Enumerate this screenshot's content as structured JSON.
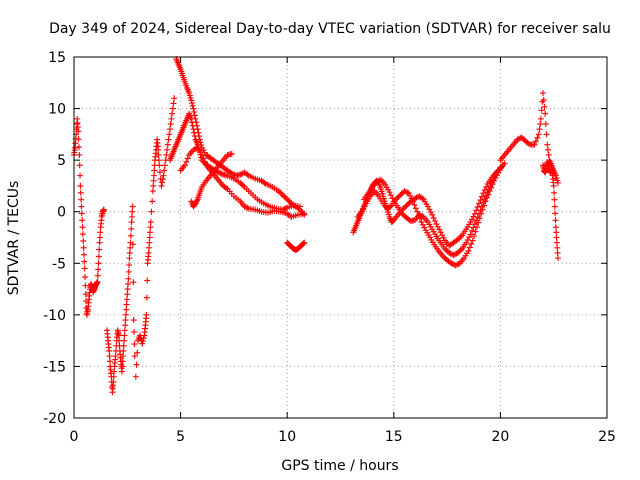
{
  "chart_data": {
    "type": "scatter",
    "title": "Day 349 of 2024, Sidereal Day-to-day VTEC variation (SDTVAR) for receiver salu",
    "xlabel": "GPS time / hours",
    "ylabel": "SDTVAR / TECUs",
    "xlim": [
      0,
      25
    ],
    "ylim": [
      -20,
      15
    ],
    "xticks": [
      0,
      5,
      10,
      15,
      20,
      25
    ],
    "yticks": [
      -20,
      -15,
      -10,
      -5,
      0,
      5,
      10,
      15
    ],
    "grid": true,
    "marker": "plus",
    "color": "#ff0000",
    "series": [
      {
        "name": "seg-1",
        "x": [
          0.0,
          0.05,
          0.1,
          0.15,
          0.2,
          0.25,
          0.3,
          0.35,
          0.4,
          0.45,
          0.5,
          0.55,
          0.6,
          0.65,
          0.7,
          0.75,
          0.8,
          0.85,
          0.9,
          0.95,
          1.0,
          1.05,
          1.1,
          1.15,
          1.2,
          1.25,
          1.3,
          1.35,
          1.4
        ],
        "y": [
          5.5,
          6.2,
          7.5,
          9.0,
          7.8,
          5.5,
          2.5,
          0.5,
          -1.5,
          -3.5,
          -5.5,
          -8.0,
          -10.0,
          -9.5,
          -8.5,
          -7.5,
          -7.0,
          -7.3,
          -7.8,
          -7.5,
          -7.2,
          -7.0,
          -6.8,
          -5.0,
          -3.0,
          -1.5,
          -0.5,
          0.0,
          0.2
        ]
      },
      {
        "name": "seg-2",
        "x": [
          1.55,
          1.6,
          1.65,
          1.7,
          1.75,
          1.8,
          1.85,
          1.9,
          1.95,
          2.0,
          2.05,
          2.1,
          2.15,
          2.2,
          2.25,
          2.3,
          2.35,
          2.4,
          2.45,
          2.5,
          2.55,
          2.6,
          2.65,
          2.7,
          2.75,
          2.8,
          2.85
        ],
        "y": [
          -11.5,
          -12.5,
          -13.5,
          -15.0,
          -16.0,
          -17.5,
          -16.5,
          -15.0,
          -14.0,
          -12.5,
          -11.5,
          -12.0,
          -13.5,
          -14.5,
          -15.5,
          -14.0,
          -12.5,
          -11.0,
          -9.5,
          -8.0,
          -6.5,
          -4.5,
          -3.0,
          -1.0,
          0.5,
          -10.5,
          -14.0
        ]
      },
      {
        "name": "seg-3",
        "x": [
          2.9,
          3.0,
          3.1,
          3.2,
          3.3,
          3.35,
          3.4,
          3.45,
          3.5,
          3.55,
          3.6,
          3.7,
          3.75,
          3.8,
          3.85,
          3.9,
          3.95,
          4.0,
          4.1,
          4.2,
          4.3,
          4.4,
          4.5,
          4.6,
          4.7
        ],
        "y": [
          -16.0,
          -12.5,
          -12.0,
          -12.8,
          -12.0,
          -11.0,
          -10.0,
          -5.0,
          -4.0,
          -2.5,
          -1.0,
          2.0,
          3.5,
          5.0,
          6.0,
          7.0,
          6.0,
          4.5,
          2.5,
          3.5,
          5.0,
          6.5,
          8.0,
          9.5,
          11.0
        ]
      },
      {
        "name": "seg-4",
        "x": [
          4.8,
          4.9,
          5.0,
          5.1,
          5.2,
          5.3,
          5.4,
          5.5,
          5.6,
          5.7,
          5.8,
          5.9,
          6.0,
          6.2,
          6.4,
          6.6,
          6.8,
          7.0,
          7.2,
          7.4,
          7.6,
          7.8,
          8.0,
          8.2,
          8.5,
          8.8,
          9.0,
          9.3,
          9.6,
          9.8,
          10.0,
          10.2,
          10.4,
          10.6,
          10.8
        ],
        "y": [
          14.8,
          14.3,
          13.8,
          13.2,
          12.6,
          12.0,
          11.5,
          10.8,
          10.0,
          9.0,
          8.0,
          7.0,
          6.2,
          5.5,
          5.2,
          4.9,
          4.6,
          4.3,
          4.0,
          3.7,
          3.5,
          3.6,
          3.8,
          3.5,
          3.2,
          3.0,
          2.7,
          2.4,
          2.0,
          1.6,
          1.2,
          0.8,
          0.5,
          0.2,
          -0.3
        ]
      },
      {
        "name": "seg-5",
        "x": [
          4.5,
          4.6,
          4.7,
          4.8,
          4.9,
          5.0,
          5.1,
          5.2,
          5.3,
          5.4,
          5.5,
          5.6,
          5.7,
          5.8,
          5.9,
          6.0,
          6.2,
          6.4,
          6.6,
          6.8,
          7.0,
          7.2,
          7.5,
          7.8,
          8.0,
          8.3,
          8.6,
          8.9,
          9.2,
          9.5,
          9.8,
          10.0,
          10.3,
          10.6
        ],
        "y": [
          5.0,
          5.5,
          6.0,
          6.5,
          7.0,
          7.5,
          8.0,
          8.5,
          9.0,
          9.5,
          9.0,
          8.0,
          7.0,
          6.5,
          5.8,
          5.0,
          4.6,
          4.3,
          4.0,
          3.8,
          3.6,
          3.5,
          3.2,
          2.8,
          2.4,
          1.8,
          1.2,
          0.8,
          0.5,
          0.3,
          0.2,
          0.4,
          0.6,
          0.5
        ]
      },
      {
        "name": "seg-6",
        "x": [
          5.0,
          5.2,
          5.4,
          5.6,
          5.8,
          6.0,
          6.2,
          6.4,
          6.6,
          6.8,
          7.0,
          7.2,
          7.5,
          7.8,
          8.0,
          8.2,
          8.5,
          8.8,
          9.1,
          9.4,
          9.7,
          10.0,
          10.2,
          10.5,
          10.8
        ],
        "y": [
          4.0,
          4.5,
          5.5,
          6.0,
          6.2,
          5.5,
          4.5,
          4.0,
          3.5,
          3.0,
          2.5,
          2.2,
          1.5,
          1.0,
          0.5,
          0.3,
          0.2,
          0.0,
          -0.1,
          0.1,
          0.0,
          -0.2,
          -0.5,
          -0.3,
          -0.2
        ]
      },
      {
        "name": "seg-7",
        "x": [
          5.5,
          5.6,
          5.7,
          5.8,
          5.9,
          6.0,
          6.2,
          6.4,
          6.6,
          6.8,
          7.0,
          7.2,
          7.4
        ],
        "y": [
          1.0,
          0.5,
          0.8,
          1.2,
          1.8,
          2.4,
          3.0,
          3.5,
          4.0,
          4.5,
          5.0,
          5.5,
          5.6
        ]
      },
      {
        "name": "seg-8",
        "x": [
          10.0,
          10.1,
          10.2,
          10.3,
          10.4,
          10.5,
          10.6,
          10.7,
          10.8
        ],
        "y": [
          -3.0,
          -3.2,
          -3.4,
          -3.6,
          -3.7,
          -3.6,
          -3.4,
          -3.2,
          -3.0
        ]
      },
      {
        "name": "seg-9",
        "x": [
          13.1,
          13.2,
          13.3,
          13.4,
          13.5,
          13.6,
          13.7,
          13.8,
          13.9,
          14.0,
          14.1,
          14.2,
          14.3,
          14.4,
          14.5,
          14.6,
          14.7,
          14.8,
          14.9,
          15.0,
          15.2,
          15.4,
          15.6,
          15.8,
          16.0,
          16.2,
          16.4,
          16.6,
          16.8,
          17.0,
          17.2,
          17.4,
          17.6,
          17.8,
          18.0,
          18.2,
          18.4,
          18.6,
          18.8,
          19.0,
          19.2,
          19.4,
          19.6,
          19.8,
          20.0,
          20.2
        ],
        "y": [
          -2.0,
          -1.5,
          -1.0,
          -0.5,
          0.0,
          0.5,
          1.0,
          1.5,
          2.0,
          2.5,
          2.8,
          3.0,
          2.8,
          2.2,
          1.5,
          0.8,
          0.2,
          -0.5,
          -1.0,
          -0.8,
          -0.3,
          0.2,
          0.6,
          1.0,
          1.3,
          1.5,
          1.2,
          0.5,
          -0.3,
          -1.2,
          -2.0,
          -2.8,
          -3.3,
          -3.0,
          -2.7,
          -2.3,
          -1.7,
          -1.0,
          -0.2,
          0.8,
          1.8,
          2.7,
          3.3,
          3.8,
          4.2,
          4.7
        ]
      },
      {
        "name": "seg-10",
        "x": [
          13.3,
          13.5,
          13.7,
          13.9,
          14.1,
          14.3,
          14.5,
          14.7,
          14.9,
          15.1,
          15.3,
          15.5,
          15.7,
          15.9,
          16.1,
          16.3,
          16.5,
          16.7,
          16.9,
          17.1,
          17.3,
          17.5,
          17.7,
          17.9,
          18.1,
          18.3,
          18.5,
          18.7,
          18.9,
          19.1,
          19.3,
          19.5,
          19.7,
          19.9,
          20.1
        ],
        "y": [
          -0.5,
          0.0,
          0.8,
          1.5,
          2.0,
          1.5,
          0.8,
          0.3,
          0.6,
          1.2,
          1.6,
          2.0,
          1.8,
          1.0,
          0.0,
          -1.0,
          -1.8,
          -2.5,
          -3.2,
          -3.8,
          -4.3,
          -4.7,
          -5.0,
          -5.2,
          -5.0,
          -4.5,
          -3.8,
          -2.8,
          -1.5,
          -0.2,
          1.0,
          2.0,
          3.0,
          3.8,
          4.5
        ]
      },
      {
        "name": "seg-11",
        "x": [
          13.6,
          13.8,
          14.0,
          14.2,
          14.4,
          14.6,
          14.8,
          15.0,
          15.2,
          15.4,
          15.6,
          15.8,
          16.0,
          16.2,
          16.4,
          16.6,
          16.8,
          17.0,
          17.2,
          17.4,
          17.6,
          17.8,
          18.0,
          18.2,
          18.4,
          18.6,
          18.8,
          19.0,
          19.2,
          19.4,
          19.6,
          19.8,
          20.0
        ],
        "y": [
          1.2,
          1.8,
          2.4,
          2.9,
          3.1,
          2.6,
          1.9,
          1.0,
          0.4,
          -0.2,
          -0.6,
          -0.9,
          -0.8,
          -0.3,
          -0.5,
          -1.0,
          -1.7,
          -2.4,
          -3.0,
          -3.6,
          -4.0,
          -4.2,
          -4.0,
          -3.6,
          -3.0,
          -2.2,
          -1.2,
          -0.2,
          0.9,
          1.9,
          2.8,
          3.6,
          4.3
        ]
      },
      {
        "name": "seg-12",
        "x": [
          20.0,
          20.2,
          20.4,
          20.6,
          20.8,
          21.0,
          21.2,
          21.4,
          21.6,
          21.8,
          21.9,
          22.0,
          22.1,
          22.2,
          22.3,
          22.4,
          22.5,
          22.6,
          22.7
        ],
        "y": [
          5.0,
          5.5,
          6.0,
          6.5,
          7.0,
          7.2,
          6.8,
          6.5,
          6.5,
          7.5,
          9.0,
          11.5,
          9.5,
          6.5,
          5.0,
          4.5,
          4.0,
          3.5,
          2.8
        ]
      },
      {
        "name": "seg-13",
        "x": [
          22.0,
          22.05,
          22.1,
          22.15,
          22.2,
          22.25,
          22.3,
          22.35,
          22.4,
          22.45,
          22.5,
          22.55,
          22.6,
          22.65,
          22.7
        ],
        "y": [
          4.5,
          4.0,
          3.8,
          4.2,
          4.8,
          4.5,
          4.0,
          3.8,
          4.1,
          3.5,
          2.5,
          0.5,
          -1.5,
          -3.0,
          -4.5
        ]
      }
    ]
  }
}
